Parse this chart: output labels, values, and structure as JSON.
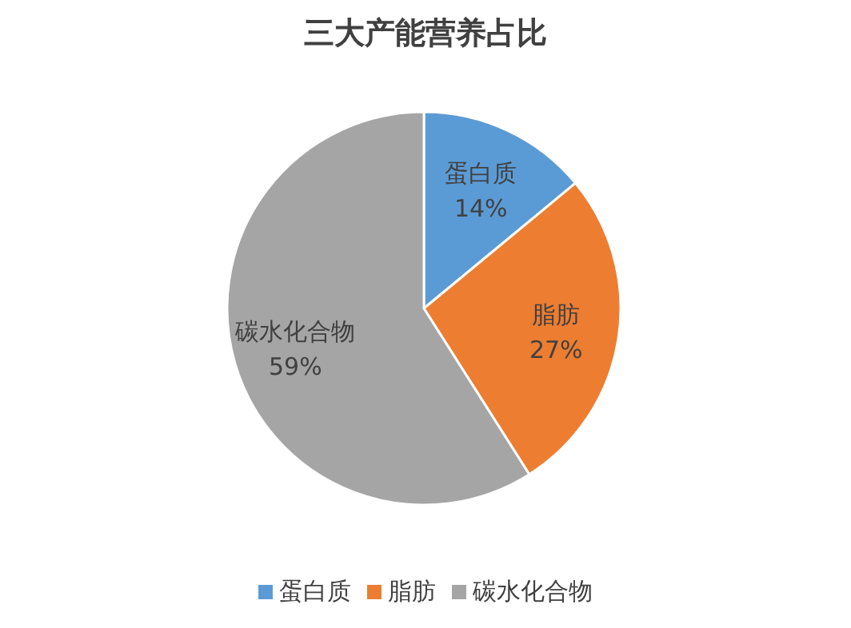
{
  "chart_data": {
    "type": "pie",
    "title": "三大产能营养占比",
    "categories": [
      "蛋白质",
      "脂肪",
      "碳水化合物"
    ],
    "values": [
      14,
      27,
      59
    ],
    "colors": [
      "#5b9bd5",
      "#ed7d31",
      "#a5a5a5"
    ],
    "value_labels": [
      "14%",
      "27%",
      "59%"
    ],
    "legend": "bottom"
  }
}
